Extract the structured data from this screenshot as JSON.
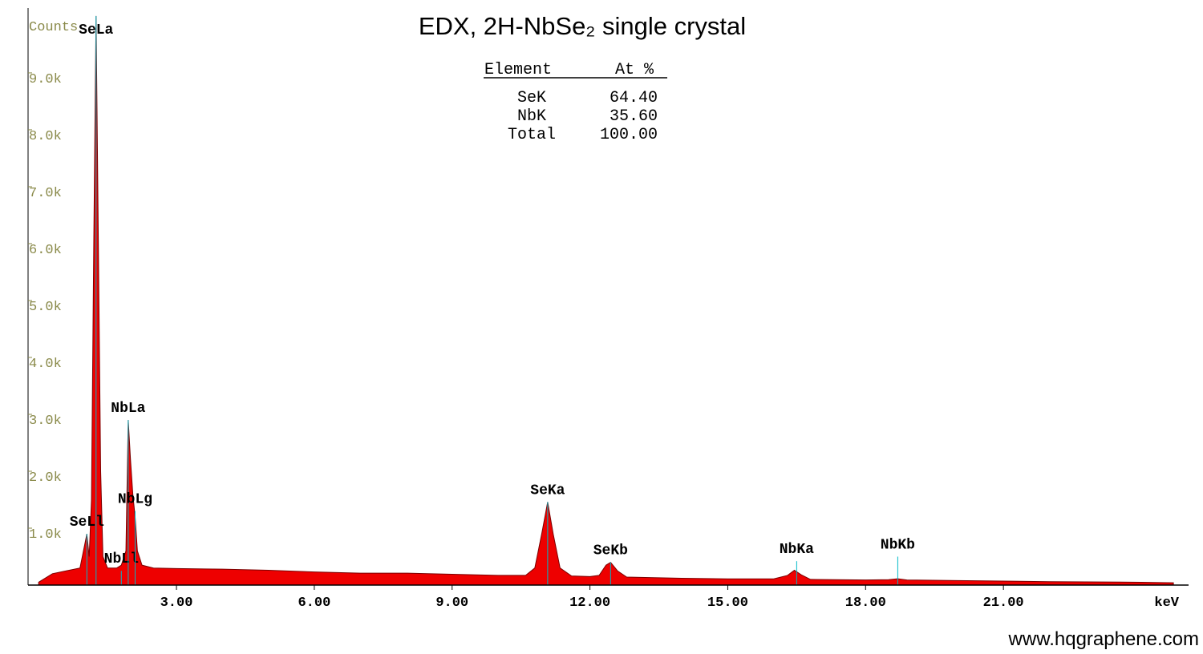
{
  "chart_data": {
    "type": "area",
    "title": "EDX, 2H-NbSe₂ single crystal",
    "y_label": "Counts",
    "x_label": "keV",
    "x": [
      0.0,
      0.3,
      0.6,
      0.9,
      1.0,
      1.05,
      1.1,
      1.15,
      1.2,
      1.25,
      1.3,
      1.35,
      1.4,
      1.5,
      1.7,
      1.8,
      1.9,
      1.95,
      2.0,
      2.05,
      2.1,
      2.15,
      2.25,
      2.5,
      3.0,
      4.0,
      5.0,
      6.0,
      7.0,
      8.0,
      9.0,
      10.0,
      10.6,
      10.8,
      10.95,
      11.08,
      11.2,
      11.35,
      11.6,
      12.0,
      12.2,
      12.35,
      12.45,
      12.6,
      12.8,
      14.0,
      15.0,
      16.0,
      16.3,
      16.45,
      16.6,
      16.8,
      18.0,
      18.5,
      18.7,
      18.9,
      20.0,
      22.0,
      24.0,
      24.7
    ],
    "values": [
      50,
      200,
      250,
      300,
      700,
      900,
      500,
      1500,
      6000,
      10000,
      6000,
      2000,
      500,
      300,
      300,
      350,
      600,
      2900,
      2200,
      1600,
      1200,
      600,
      350,
      300,
      290,
      280,
      260,
      230,
      210,
      210,
      190,
      170,
      170,
      300,
      900,
      1460,
      900,
      300,
      160,
      150,
      170,
      350,
      400,
      250,
      140,
      120,
      110,
      110,
      170,
      260,
      180,
      100,
      90,
      95,
      110,
      90,
      80,
      60,
      50,
      40
    ],
    "color": "#ee0000",
    "line_color": "#7a0000",
    "marker_color": "#00b8c8",
    "peaks": [
      {
        "label": "SeLa",
        "energy": 1.25,
        "counts": 10000
      },
      {
        "label": "SeLl",
        "energy": 1.05,
        "counts": 900
      },
      {
        "label": "NbLl",
        "energy": 1.8,
        "counts": 250
      },
      {
        "label": "NbLa",
        "energy": 1.95,
        "counts": 2900
      },
      {
        "label": "NbLg",
        "energy": 2.1,
        "counts": 1300
      },
      {
        "label": "SeKa",
        "energy": 11.08,
        "counts": 1460
      },
      {
        "label": "SeKb",
        "energy": 12.45,
        "counts": 400
      },
      {
        "label": "NbKa",
        "energy": 16.5,
        "counts": 420
      },
      {
        "label": "NbKb",
        "energy": 18.7,
        "counts": 500
      }
    ],
    "xlim": [
      -0.23,
      25.03
    ],
    "ylim": [
      0,
      10140
    ],
    "xticks": [
      {
        "value": 3,
        "label": "3.00"
      },
      {
        "value": 6,
        "label": "6.00"
      },
      {
        "value": 9,
        "label": "9.00"
      },
      {
        "value": 12,
        "label": "12.00"
      },
      {
        "value": 15,
        "label": "15.00"
      },
      {
        "value": 18,
        "label": "18.00"
      },
      {
        "value": 21,
        "label": "21.00"
      }
    ],
    "yticks": [
      {
        "value": 1000,
        "label": "1.0k"
      },
      {
        "value": 2000,
        "label": "2.0k"
      },
      {
        "value": 3000,
        "label": "3.0k"
      },
      {
        "value": 4000,
        "label": "4.0k"
      },
      {
        "value": 5000,
        "label": "5.0k"
      },
      {
        "value": 6000,
        "label": "6.0k"
      },
      {
        "value": 7000,
        "label": "7.0k"
      },
      {
        "value": 8000,
        "label": "8.0k"
      },
      {
        "value": 9000,
        "label": "9.0k"
      }
    ]
  },
  "composition": {
    "headers": [
      "Element",
      "At %"
    ],
    "rows": [
      [
        "SeK",
        "64.40"
      ],
      [
        "NbK",
        "35.60"
      ],
      [
        "Total",
        "100.00"
      ]
    ]
  },
  "watermark": "www.hqgraphene.com"
}
